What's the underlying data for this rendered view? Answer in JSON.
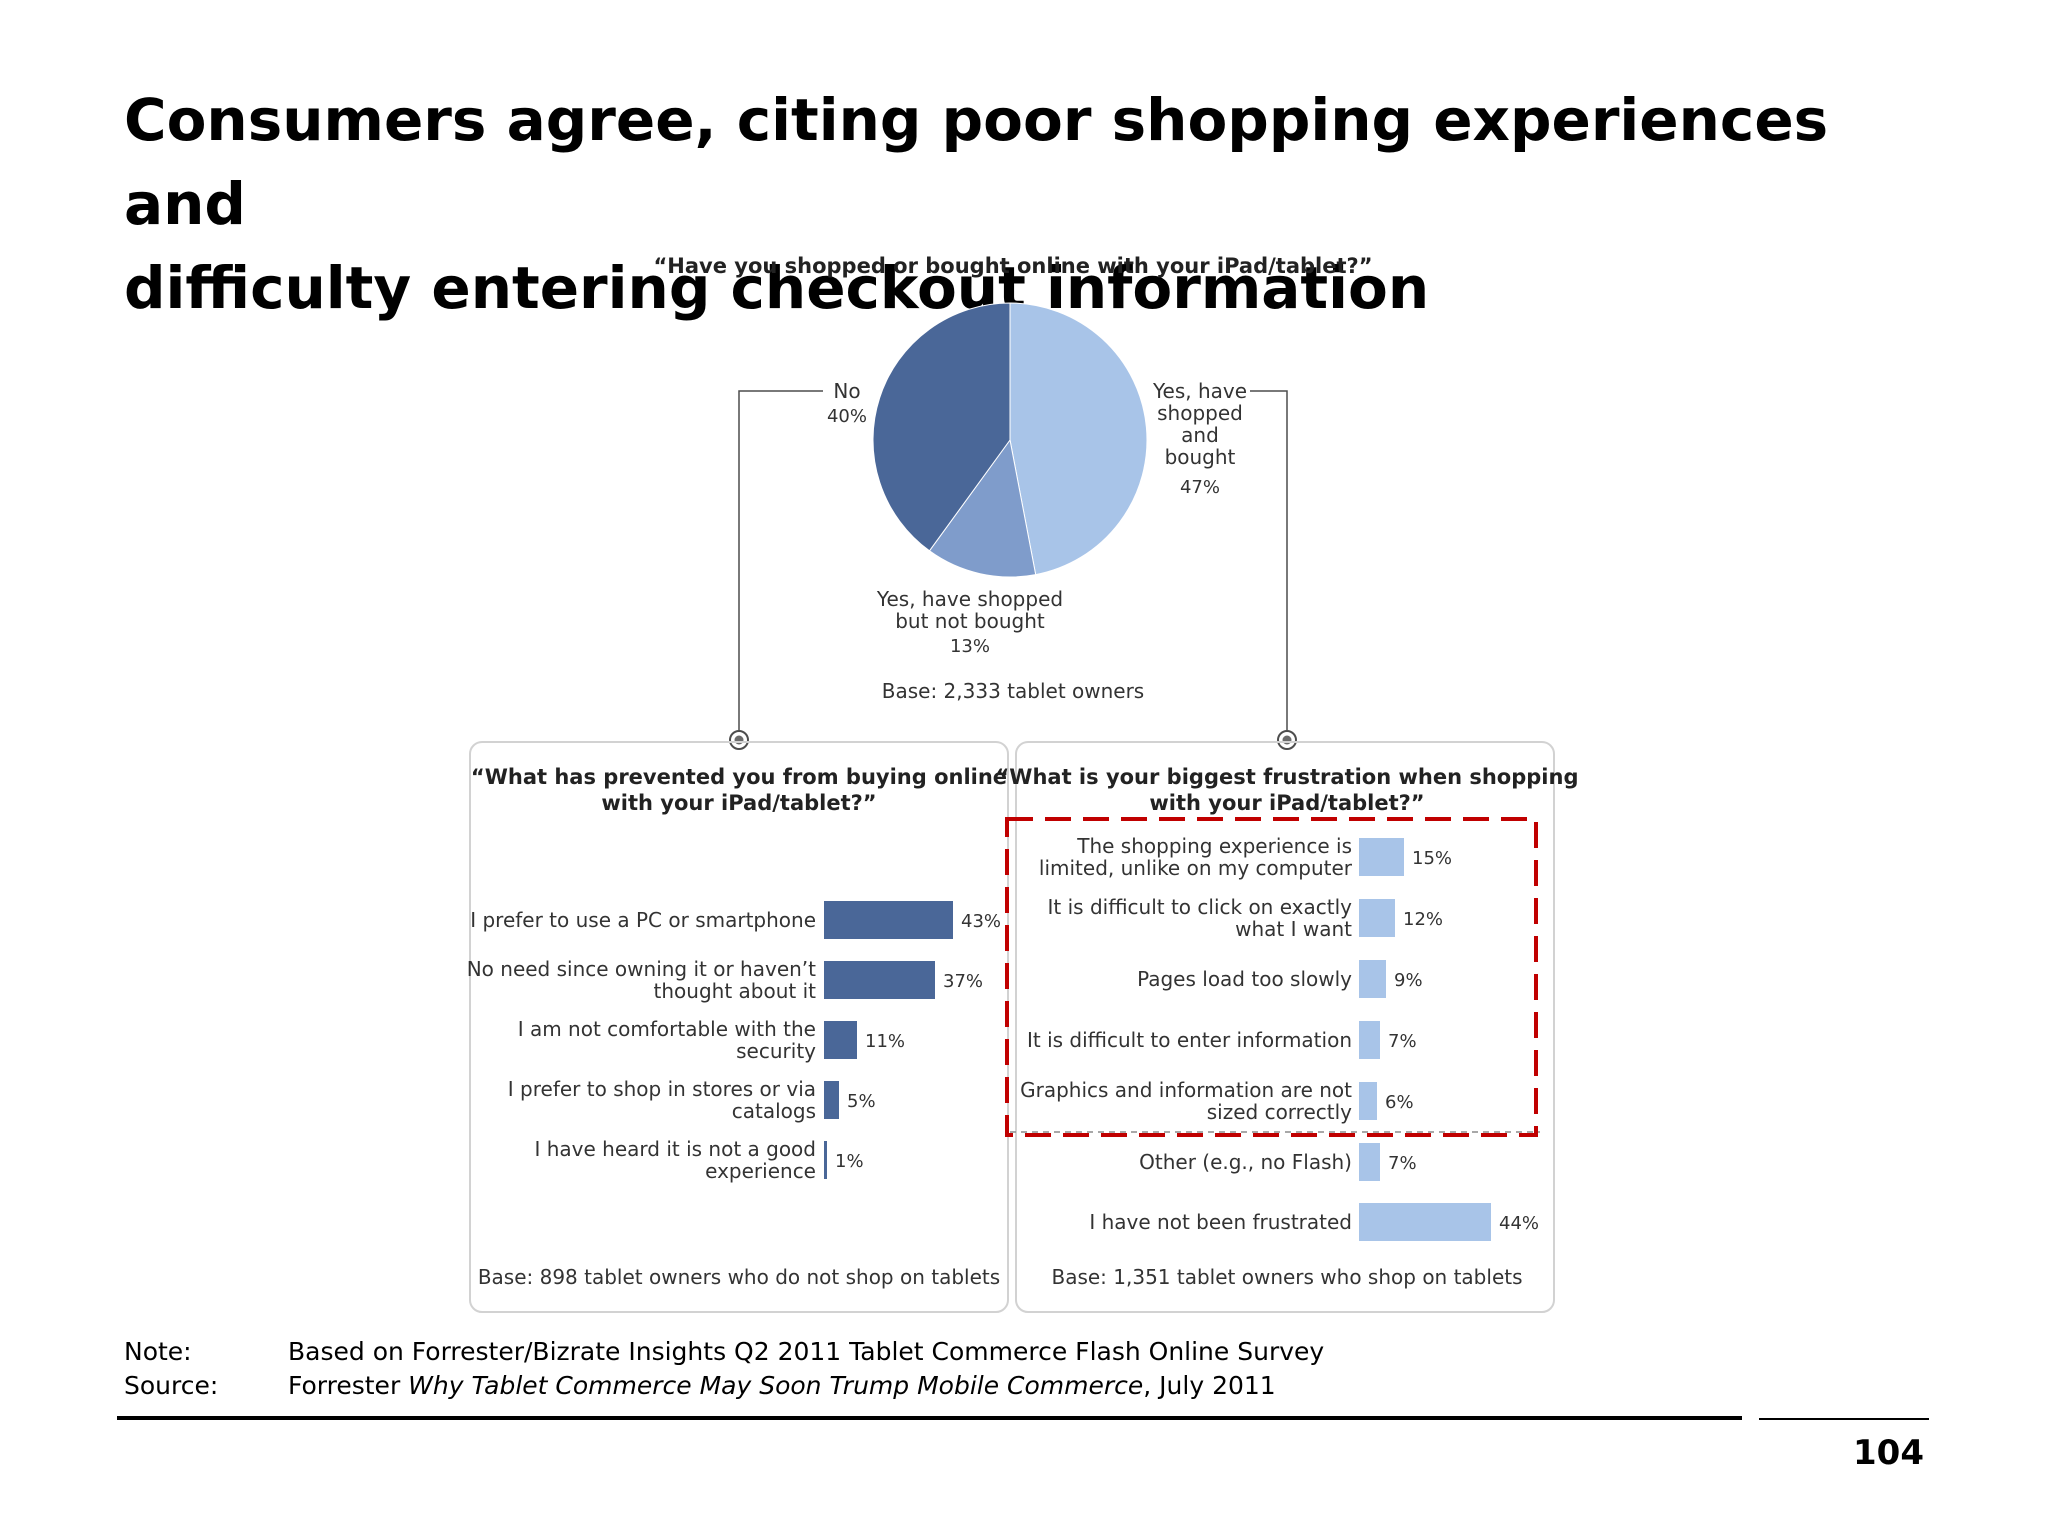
{
  "title_lines": [
    "Consumers agree, citing poor shopping experiences and",
    "difficulty entering checkout information"
  ],
  "colors": {
    "dark_blue": "#4a6798",
    "mid_blue": "#7f9ccb",
    "light_blue": "#a8c4e8",
    "highlight_red": "#c00000",
    "panel_border": "#d2d2d2",
    "connector": "#4d4d4d"
  },
  "chart_data": [
    {
      "type": "pie",
      "title": "“Have you shopped or bought online with your iPad/tablet?”",
      "base": "Base: 2,333 tablet owners",
      "slices": [
        {
          "label_lines": [
            "Yes, have",
            "shopped",
            "and",
            "bought"
          ],
          "value": 47,
          "value_label": "47%",
          "color": "#a8c4e8"
        },
        {
          "label_lines": [
            "Yes, have shopped",
            "but not bought"
          ],
          "value": 13,
          "value_label": "13%",
          "color": "#7f9ccb"
        },
        {
          "label_lines": [
            "No"
          ],
          "value": 40,
          "value_label": "40%",
          "color": "#4a6798"
        }
      ]
    },
    {
      "type": "bar",
      "orientation": "horizontal",
      "title_lines": [
        "“What has prevented you from buying online",
        "with your iPad/tablet?”"
      ],
      "base": "Base: 898 tablet owners who do not shop on tablets",
      "color": "#4a6798",
      "categories": [
        [
          "I prefer to use a PC or smartphone"
        ],
        [
          "No need since owning it or haven’t",
          "thought about it"
        ],
        [
          "I am not comfortable with the",
          "security"
        ],
        [
          "I prefer to shop in stores or via",
          "catalogs"
        ],
        [
          "I have heard it is not a good",
          "experience"
        ]
      ],
      "values": [
        43,
        37,
        11,
        5,
        1
      ],
      "value_labels": [
        "43%",
        "37%",
        "11%",
        "5%",
        "1%"
      ]
    },
    {
      "type": "bar",
      "orientation": "horizontal",
      "title_lines": [
        "“What is your biggest frustration when shopping",
        "with your iPad/tablet?”"
      ],
      "base": "Base: 1,351 tablet owners who shop on tablets",
      "color": "#a8c4e8",
      "highlighted_count": 5,
      "categories": [
        [
          "The shopping experience is",
          "limited, unlike on my computer"
        ],
        [
          "It is difficult to click on exactly",
          "what I want"
        ],
        [
          "Pages load too slowly"
        ],
        [
          "It is difficult to enter information"
        ],
        [
          "Graphics and information are not",
          "sized correctly"
        ],
        [
          "Other (e.g., no Flash)"
        ],
        [
          "I have not been frustrated"
        ]
      ],
      "values": [
        15,
        12,
        9,
        7,
        6,
        7,
        44
      ],
      "value_labels": [
        "15%",
        "12%",
        "9%",
        "7%",
        "6%",
        "7%",
        "44%"
      ]
    }
  ],
  "note": {
    "label": "Note:",
    "text": "Based on Forrester/Bizrate Insights Q2 2011 Tablet Commerce Flash Online Survey"
  },
  "source": {
    "label": "Source:",
    "prefix": "Forrester ",
    "italic": "Why Tablet Commerce May Soon Trump Mobile Commerce",
    "suffix": ", July 2011"
  },
  "page_number": "104"
}
